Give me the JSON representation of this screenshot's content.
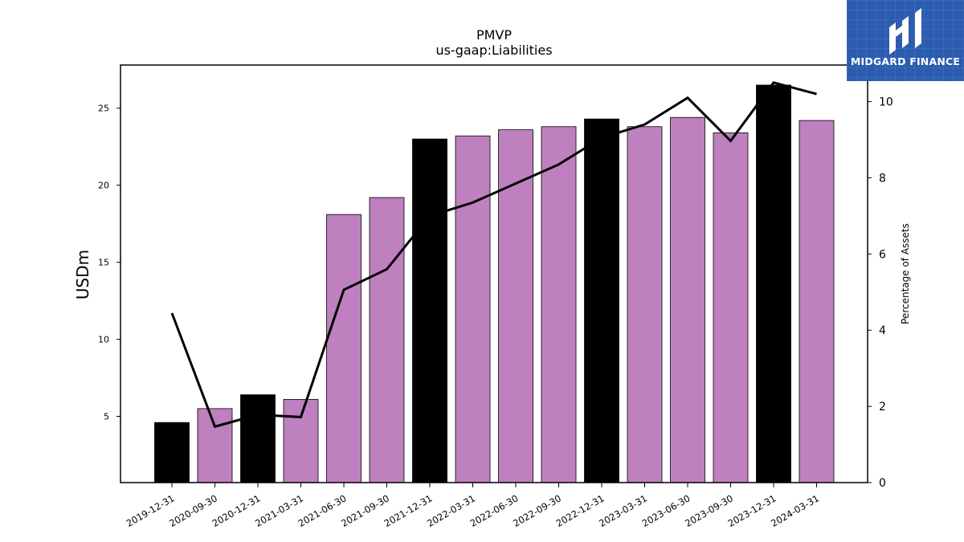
{
  "chart_data": {
    "type": "bar",
    "title": "PMVP",
    "subtitle": "us-gaap:Liabilities",
    "ylabel": "USDm",
    "y2label": "Percentage of Assets",
    "categories": [
      "2019-12-31",
      "2020-09-30",
      "2020-12-31",
      "2021-03-31",
      "2021-06-30",
      "2021-09-30",
      "2021-12-31",
      "2022-03-31",
      "2022-06-30",
      "2022-09-30",
      "2022-12-31",
      "2023-03-31",
      "2023-06-30",
      "2023-09-30",
      "2023-12-31",
      "2024-03-31"
    ],
    "bar_colors": [
      "#000000",
      "#bf80bf",
      "#000000",
      "#bf80bf",
      "#bf80bf",
      "#bf80bf",
      "#000000",
      "#bf80bf",
      "#bf80bf",
      "#bf80bf",
      "#000000",
      "#bf80bf",
      "#bf80bf",
      "#bf80bf",
      "#000000",
      "#bf80bf"
    ],
    "series": [
      {
        "axis": "left",
        "kind": "bar",
        "values": [
          4.6,
          5.5,
          6.4,
          6.1,
          18.1,
          19.2,
          23.0,
          23.2,
          23.6,
          23.8,
          24.3,
          23.8,
          24.4,
          23.4,
          26.5,
          24.2
        ]
      },
      {
        "axis": "right",
        "kind": "line",
        "color": "#000000",
        "values": [
          4.45,
          1.47,
          1.78,
          1.72,
          5.06,
          5.6,
          7.0,
          7.35,
          7.85,
          8.35,
          9.05,
          9.4,
          10.1,
          8.97,
          10.5,
          10.2
        ]
      }
    ],
    "yticks": [
      5,
      10,
      15,
      20,
      25
    ],
    "ylim": [
      0.7,
      27.8
    ],
    "y2ticks": [
      0,
      2,
      4,
      6,
      8,
      10
    ],
    "y2lim": [
      0,
      10.96
    ],
    "grid": false
  },
  "logo": {
    "text": "MIDGARD FINANCE",
    "color": "#2b5cb0"
  }
}
